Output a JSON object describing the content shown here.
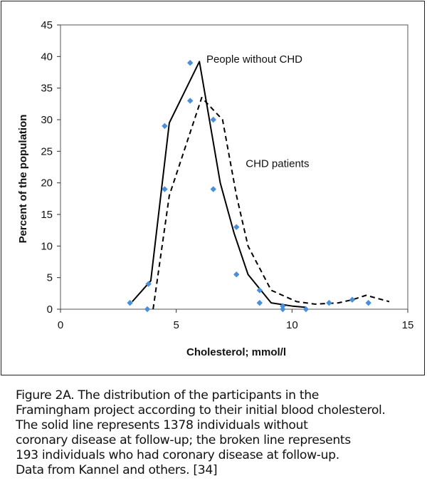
{
  "chart_data": {
    "type": "line",
    "xlabel": "Cholesterol;  mmol/l",
    "ylabel": "Percent of the population",
    "xlim": [
      0,
      15
    ],
    "ylim": [
      0,
      45
    ],
    "xticks": [
      "0",
      "5",
      "10",
      "15"
    ],
    "yticks": [
      "0",
      "5",
      "10",
      "15",
      "20",
      "25",
      "30",
      "35",
      "40",
      "45"
    ],
    "grid": false,
    "series": [
      {
        "name": "People without CHD",
        "style": "solid",
        "color": "#000000",
        "x": [
          3.1,
          3.9,
          4.7,
          6.0,
          6.9,
          7.5,
          8.1,
          9.1,
          10.0,
          10.6
        ],
        "y": [
          1.2,
          4.5,
          29.5,
          39.2,
          20.0,
          12.0,
          5.5,
          1.0,
          0.5,
          0.3
        ]
      },
      {
        "name": "CHD patients",
        "style": "dashed",
        "color": "#000000",
        "x": [
          4.0,
          4.7,
          6.1,
          7.0,
          7.6,
          8.1,
          9.1,
          10.2,
          11.0,
          12.0,
          12.6,
          13.2,
          14.2
        ],
        "y": [
          0.0,
          18.0,
          33.5,
          30.0,
          18.0,
          10.0,
          3.0,
          1.2,
          0.8,
          1.0,
          1.5,
          2.2,
          1.2
        ]
      },
      {
        "name": "",
        "style": "markers",
        "color": "#4a90d9",
        "x": [
          3.0,
          3.8,
          3.75,
          4.5,
          4.5,
          5.6,
          5.6,
          6.6,
          6.6,
          7.6,
          7.6,
          8.6,
          8.6,
          9.6,
          9.6,
          10.6,
          11.6,
          12.6,
          13.3
        ],
        "y": [
          1.0,
          4.0,
          0.0,
          29.0,
          19.0,
          39.0,
          33.0,
          30.0,
          19.0,
          13.0,
          5.5,
          3.0,
          1.0,
          0.5,
          0.0,
          0.0,
          1.0,
          1.5,
          1.0
        ]
      }
    ],
    "annotations": [
      {
        "text": "People without CHD",
        "x": 6.3,
        "y": 39.0
      },
      {
        "text": "CHD patients",
        "x": 8.0,
        "y": 22.5
      }
    ]
  },
  "caption": [
    "Figure 2A. The distribution of the participants in the",
    "Framingham project according to their initial blood cholesterol.",
    "The solid line represents 1378 individuals without",
    "coronary disease at follow-up; the broken line represents",
    "193 individuals who had coronary disease at follow-up.",
    "Data from Kannel and others. [34]"
  ]
}
